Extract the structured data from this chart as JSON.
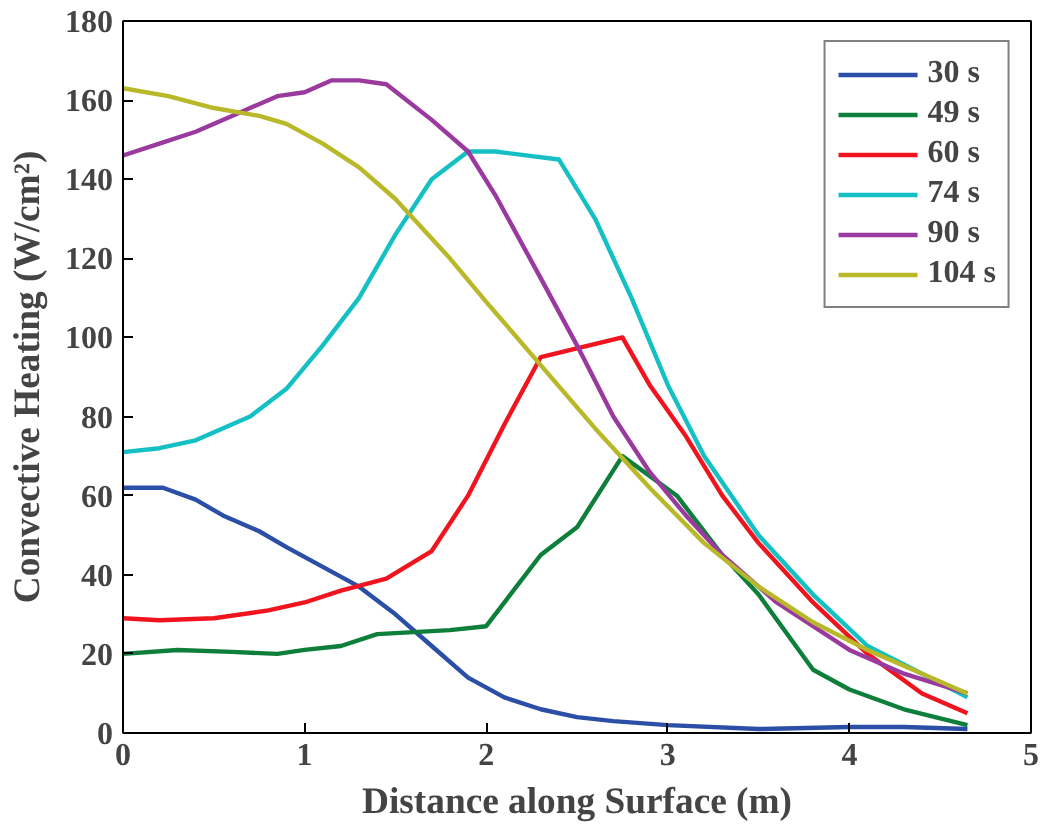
{
  "chart_data": {
    "type": "line",
    "xlabel": "Distance along Surface (m)",
    "ylabel": "Convective Heating (W/cm²)",
    "xlim": [
      0,
      5
    ],
    "ylim": [
      0,
      180
    ],
    "xticks": [
      0,
      1,
      2,
      3,
      4,
      5
    ],
    "yticks": [
      0,
      20,
      40,
      60,
      80,
      100,
      120,
      140,
      160,
      180
    ],
    "grid": false,
    "legend": "top right",
    "marker": "none",
    "line_style": "solid",
    "series": [
      {
        "name": "30 s",
        "color": "#2b4fa6",
        "x": [
          0,
          0.22,
          0.4,
          0.55,
          0.75,
          0.9,
          1.1,
          1.3,
          1.5,
          1.7,
          1.9,
          2.1,
          2.3,
          2.5,
          2.7,
          3.0,
          3.5,
          4.0,
          4.3,
          4.65
        ],
        "values": [
          62,
          62,
          59,
          55,
          51,
          47,
          42,
          37,
          30,
          22,
          14,
          9,
          6,
          4,
          3,
          2,
          1,
          1.5,
          1.5,
          1
        ]
      },
      {
        "name": "49 s",
        "color": "#0e7f3a",
        "x": [
          0,
          0.3,
          0.6,
          0.85,
          1.0,
          1.2,
          1.4,
          1.6,
          1.8,
          2.0,
          2.3,
          2.5,
          2.75,
          3.05,
          3.3,
          3.5,
          3.8,
          4.0,
          4.3,
          4.65
        ],
        "values": [
          20,
          21,
          20.5,
          20,
          21,
          22,
          25,
          25.5,
          26,
          27,
          45,
          52,
          70,
          60,
          45,
          35,
          16,
          11,
          6,
          2
        ]
      },
      {
        "name": "60 s",
        "color": "#f0141e",
        "x": [
          0,
          0.2,
          0.5,
          0.8,
          1.0,
          1.2,
          1.45,
          1.7,
          1.9,
          2.1,
          2.3,
          2.75,
          2.9,
          3.1,
          3.3,
          3.5,
          3.8,
          4.1,
          4.4,
          4.65
        ],
        "values": [
          29,
          28.5,
          29,
          31,
          33,
          36,
          39,
          46,
          60,
          78,
          95,
          100,
          88,
          75,
          60,
          48,
          33,
          20,
          10,
          5
        ]
      },
      {
        "name": "74 s",
        "color": "#14c0c4",
        "x": [
          0,
          0.2,
          0.4,
          0.7,
          0.9,
          1.1,
          1.3,
          1.5,
          1.7,
          1.9,
          2.05,
          2.4,
          2.6,
          2.8,
          3.0,
          3.2,
          3.5,
          3.8,
          4.1,
          4.4,
          4.65
        ],
        "values": [
          71,
          72,
          74,
          80,
          87,
          98,
          110,
          126,
          140,
          147,
          147,
          145,
          130,
          110,
          88,
          70,
          50,
          35,
          22,
          15,
          9
        ]
      },
      {
        "name": "90 s",
        "color": "#9b3a9e",
        "x": [
          0,
          0.2,
          0.4,
          0.6,
          0.85,
          1.0,
          1.15,
          1.3,
          1.45,
          1.7,
          1.9,
          2.05,
          2.3,
          2.5,
          2.7,
          2.9,
          3.1,
          3.3,
          3.6,
          4.0,
          4.3,
          4.65
        ],
        "values": [
          146,
          149,
          152,
          156,
          161,
          162,
          165,
          165,
          164,
          155,
          147,
          136,
          115,
          98,
          80,
          66,
          55,
          45,
          33,
          21,
          15,
          10
        ]
      },
      {
        "name": "104 s",
        "color": "#b8b828",
        "x": [
          0,
          0.25,
          0.5,
          0.75,
          0.9,
          1.1,
          1.3,
          1.5,
          1.8,
          2.0,
          2.3,
          2.6,
          2.9,
          3.2,
          3.5,
          3.8,
          4.1,
          4.4,
          4.65
        ],
        "values": [
          163,
          161,
          158,
          156,
          154,
          149,
          143,
          135,
          120,
          109,
          93,
          77,
          62,
          48,
          37,
          28,
          21,
          15,
          10
        ]
      }
    ]
  }
}
